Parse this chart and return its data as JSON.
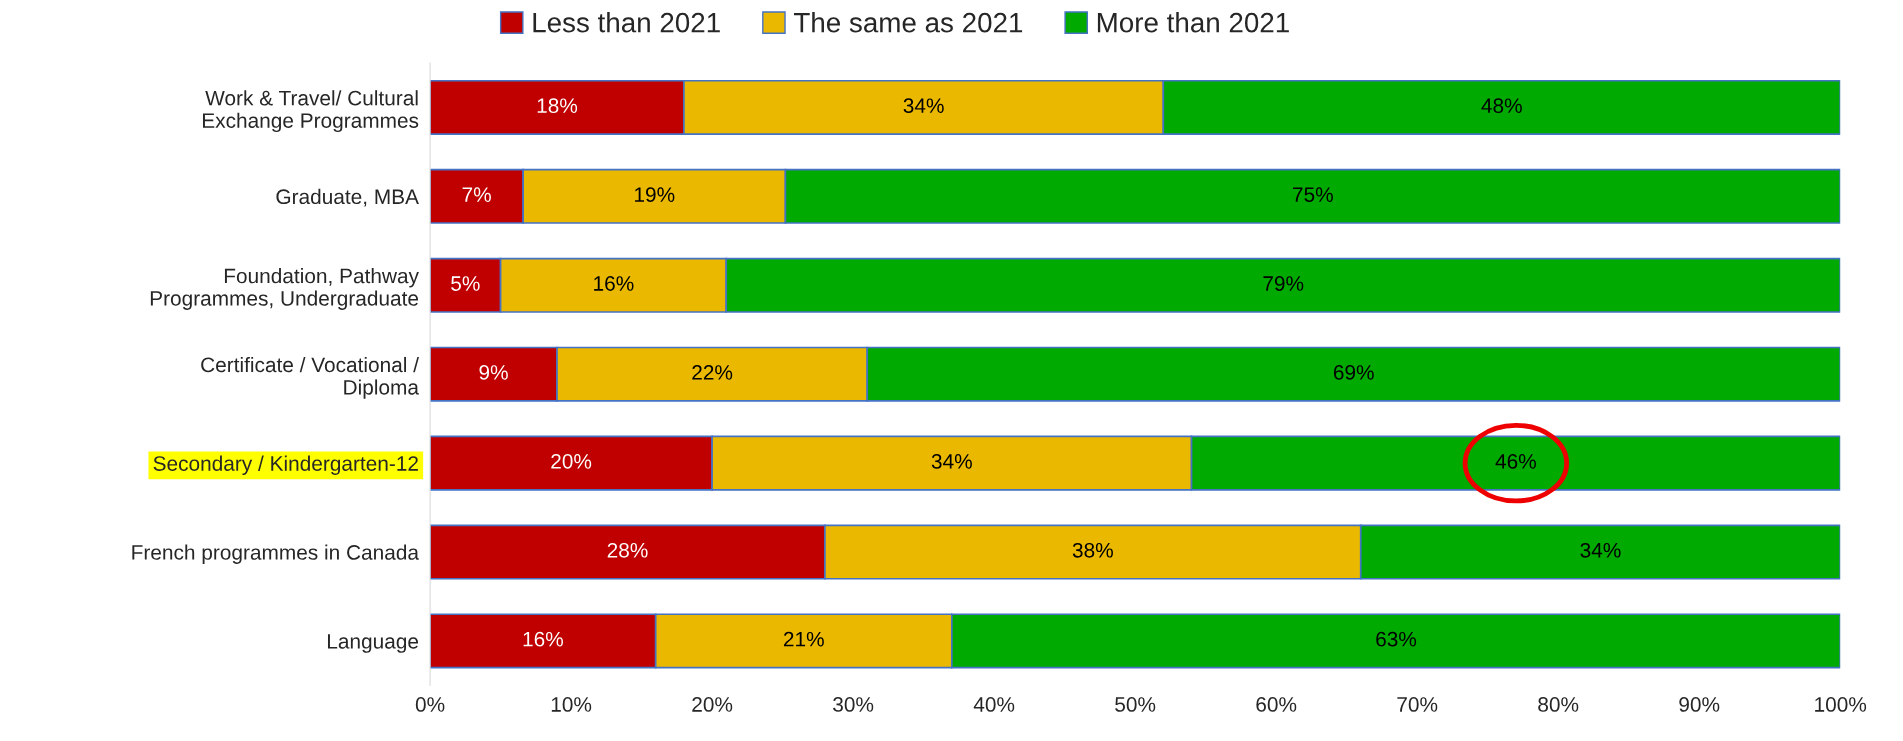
{
  "chart_data": {
    "type": "bar",
    "orientation": "horizontal",
    "stacked": true,
    "legend": "top",
    "grid": false,
    "categories": [
      "Work & Travel/ Cultural\nExchange Programmes",
      "Graduate, MBA",
      "Foundation, Pathway\nProgrammes, Undergraduate",
      "Certificate / Vocational /\nDiploma",
      "Secondary / Kindergarten-12",
      "French programmes in Canada",
      "Language"
    ],
    "series": [
      {
        "name": "Less than 2021",
        "color": "#c00000",
        "values": [
          18,
          6.6,
          5,
          9,
          20,
          28,
          16
        ],
        "value_labels": [
          "18%",
          "7%",
          "5%",
          "9%",
          "20%",
          "28%",
          "16%"
        ]
      },
      {
        "name": "The same as 2021",
        "color": "#ebb800",
        "values": [
          34,
          18.6,
          16,
          22,
          34,
          38,
          21
        ],
        "value_labels": [
          "34%",
          "19%",
          "16%",
          "22%",
          "34%",
          "38%",
          "21%"
        ]
      },
      {
        "name": "More than 2021",
        "color": "#00aa00",
        "values": [
          48,
          74.8,
          79,
          69,
          46,
          34,
          63
        ],
        "value_labels": [
          "48%",
          "75%",
          "79%",
          "69%",
          "46%",
          "34%",
          "63%"
        ]
      }
    ],
    "xlim": [
      0,
      100
    ],
    "xticks": [
      {
        "value": 0,
        "label": "0%"
      },
      {
        "value": 10,
        "label": "10%"
      },
      {
        "value": 20,
        "label": "20%"
      },
      {
        "value": 30,
        "label": "30%"
      },
      {
        "value": 40,
        "label": "40%"
      },
      {
        "value": 50,
        "label": "50%"
      },
      {
        "value": 60,
        "label": "60%"
      },
      {
        "value": 70,
        "label": "70%"
      },
      {
        "value": 80,
        "label": "80%"
      },
      {
        "value": 90,
        "label": "90%"
      },
      {
        "value": 100,
        "label": "100%"
      }
    ]
  }
}
